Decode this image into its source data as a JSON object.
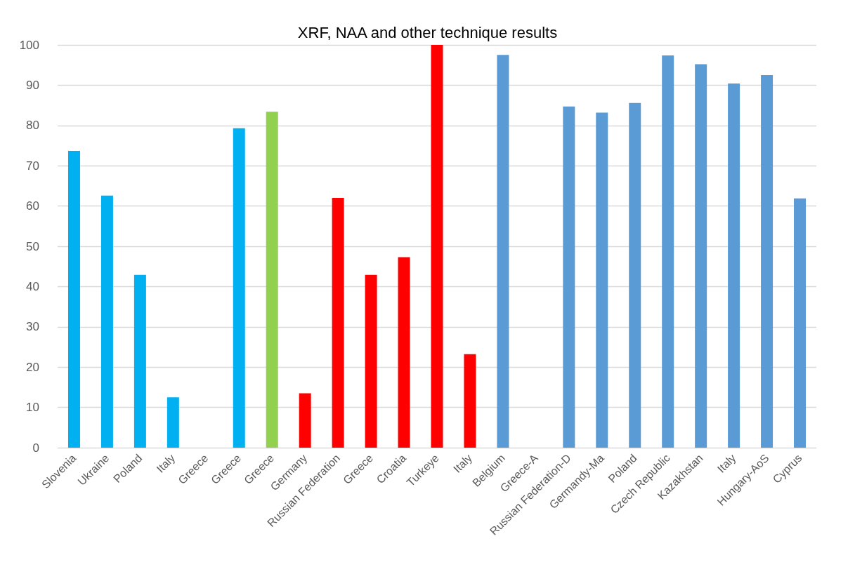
{
  "chart_data": {
    "type": "bar",
    "title": "XRF, NAA and other technique results",
    "categories": [
      "Slovenia",
      "Ukraine",
      "Poland",
      "Italy",
      "Greece",
      "Greece",
      "Greece",
      "Germany",
      "Russian Federation",
      "Greece",
      "Croatia",
      "Turkeye",
      "Italy",
      "Belgium",
      "Greece-A",
      "Russian Federation-D",
      "Germandy-Ma",
      "Poland",
      "Czech Republic",
      "Kazakhstan",
      "Italy",
      "Hungary-AoS",
      "Cyprus"
    ],
    "values": [
      73.7,
      62.6,
      42.9,
      12.5,
      null,
      79.3,
      83.4,
      13.5,
      62.0,
      42.9,
      47.3,
      100,
      23.2,
      97.5,
      null,
      84.7,
      83.2,
      85.6,
      97.4,
      95.2,
      90.4,
      92.5,
      61.9
    ],
    "colors": [
      "#00b0f0",
      "#00b0f0",
      "#00b0f0",
      "#00b0f0",
      "#00b0f0",
      "#00b0f0",
      "#92d050",
      "#ff0000",
      "#ff0000",
      "#ff0000",
      "#ff0000",
      "#ff0000",
      "#ff0000",
      "#5b9bd5",
      "#5b9bd5",
      "#5b9bd5",
      "#5b9bd5",
      "#5b9bd5",
      "#5b9bd5",
      "#5b9bd5",
      "#5b9bd5",
      "#5b9bd5",
      "#5b9bd5"
    ],
    "ylim": [
      0,
      100
    ],
    "yticks": [
      0,
      10,
      20,
      30,
      40,
      50,
      60,
      70,
      80,
      90,
      100
    ],
    "grid": "y"
  }
}
